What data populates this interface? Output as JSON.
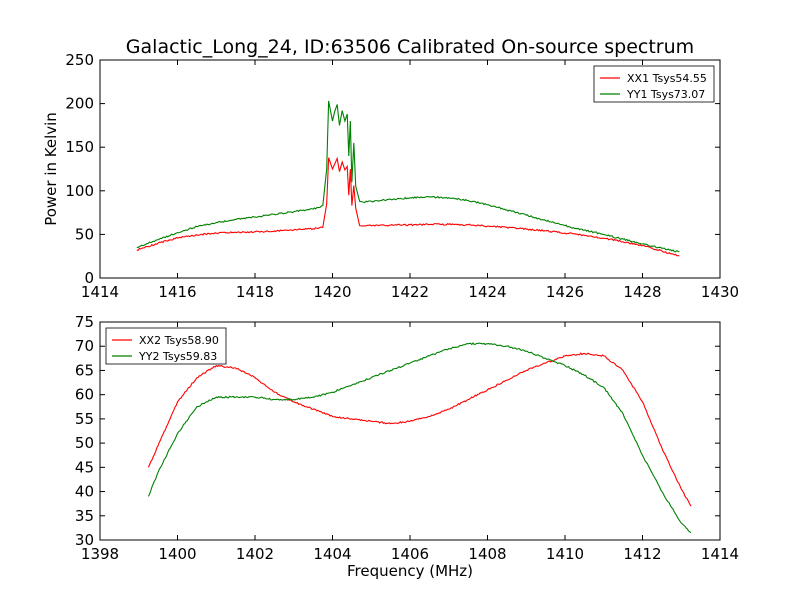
{
  "figure": {
    "title": "Galactic_Long_24, ID:63506 Calibrated On-source spectrum",
    "xlabel": "Frequency (MHz)"
  },
  "chart_data": [
    {
      "type": "line",
      "title": "Galactic_Long_24, ID:63506 Calibrated On-source spectrum",
      "xlabel": "",
      "ylabel": "Power in Kelvin",
      "xlim": [
        1414,
        1430
      ],
      "ylim": [
        0,
        250
      ],
      "xticks": [
        1414,
        1416,
        1418,
        1420,
        1422,
        1424,
        1426,
        1428,
        1430
      ],
      "yticks": [
        0,
        50,
        100,
        150,
        200,
        250
      ],
      "grid": false,
      "legend": "top-right",
      "series": [
        {
          "name": "XX1 Tsys54.55",
          "color": "#ff0000",
          "x": [
            1414.95,
            1415.5,
            1416,
            1416.5,
            1417,
            1417.5,
            1418,
            1418.5,
            1419,
            1419.5,
            1419.75,
            1419.85,
            1419.9,
            1420.0,
            1420.05,
            1420.12,
            1420.18,
            1420.25,
            1420.32,
            1420.38,
            1420.42,
            1420.46,
            1420.5,
            1420.55,
            1420.6,
            1420.7,
            1420.8,
            1421,
            1421.5,
            1422,
            1422.5,
            1423,
            1423.5,
            1424,
            1424.5,
            1425,
            1425.5,
            1426,
            1426.5,
            1427,
            1427.5,
            1428,
            1428.5,
            1428.95
          ],
          "y": [
            32,
            40,
            46,
            49.5,
            51.5,
            52.5,
            53,
            54,
            55,
            56.5,
            58,
            85,
            138,
            125,
            130,
            137,
            122,
            133,
            124,
            128,
            95,
            125,
            83,
            106,
            80,
            60,
            59.5,
            60,
            60.5,
            61,
            61.5,
            61.5,
            61,
            59.5,
            58,
            56,
            54,
            51.5,
            49,
            45.5,
            41.5,
            37,
            31,
            25
          ]
        },
        {
          "name": "YY1 Tsys73.07",
          "color": "#008000",
          "x": [
            1414.95,
            1415.5,
            1416,
            1416.5,
            1417,
            1417.5,
            1418,
            1418.5,
            1419,
            1419.5,
            1419.75,
            1419.85,
            1419.9,
            1420.0,
            1420.05,
            1420.12,
            1420.18,
            1420.25,
            1420.32,
            1420.38,
            1420.42,
            1420.46,
            1420.5,
            1420.55,
            1420.6,
            1420.7,
            1420.8,
            1421,
            1421.5,
            1422,
            1422.5,
            1423,
            1423.5,
            1424,
            1424.5,
            1425,
            1425.5,
            1426,
            1426.5,
            1427,
            1427.5,
            1428,
            1428.5,
            1428.95
          ],
          "y": [
            35,
            44,
            52,
            59,
            63.5,
            67,
            70,
            73,
            76,
            79,
            83,
            125,
            203,
            180,
            190,
            199,
            175,
            192,
            180,
            188,
            140,
            180,
            110,
            155,
            105,
            88,
            87,
            88,
            90,
            92,
            93,
            92,
            89,
            84,
            78,
            72,
            66,
            60,
            55,
            50,
            44.5,
            39,
            34,
            30
          ]
        }
      ]
    },
    {
      "type": "line",
      "title": "",
      "xlabel": "Frequency (MHz)",
      "ylabel": "",
      "xlim": [
        1398,
        1414
      ],
      "ylim": [
        30,
        75
      ],
      "xticks": [
        1398,
        1400,
        1402,
        1404,
        1406,
        1408,
        1410,
        1412,
        1414
      ],
      "yticks": [
        30,
        35,
        40,
        45,
        50,
        55,
        60,
        65,
        70,
        75
      ],
      "grid": false,
      "legend": "top-left",
      "series": [
        {
          "name": "XX2 Tsys58.90",
          "color": "#ff0000",
          "x": [
            1399.25,
            1399.5,
            1400,
            1400.5,
            1401,
            1401.5,
            1402,
            1402.5,
            1403,
            1403.5,
            1404,
            1404.5,
            1405,
            1405.5,
            1406,
            1406.5,
            1407,
            1407.5,
            1408,
            1408.5,
            1409,
            1409.5,
            1410,
            1410.5,
            1411,
            1411.5,
            1412,
            1412.5,
            1413,
            1413.25
          ],
          "y": [
            45,
            49.5,
            58.5,
            63.5,
            66,
            65.5,
            63.5,
            60.5,
            58.5,
            57,
            55.5,
            55,
            54.5,
            54,
            54.5,
            55.5,
            57,
            59,
            61,
            63,
            65,
            66.5,
            68,
            68.5,
            68,
            65,
            58.5,
            49,
            40.5,
            37
          ]
        },
        {
          "name": "YY2 Tsys59.83",
          "color": "#008000",
          "x": [
            1399.25,
            1399.5,
            1400,
            1400.5,
            1401,
            1401.5,
            1402,
            1402.5,
            1403,
            1403.5,
            1404,
            1404.5,
            1405,
            1405.5,
            1406,
            1406.5,
            1407,
            1407.5,
            1408,
            1408.5,
            1409,
            1409.5,
            1410,
            1410.5,
            1411,
            1411.5,
            1412,
            1412.5,
            1413,
            1413.25
          ],
          "y": [
            39,
            44,
            52,
            57.5,
            59.5,
            59.5,
            59.5,
            59,
            59,
            59.5,
            60.5,
            62,
            63.5,
            65,
            66.5,
            68,
            69.5,
            70.5,
            70.5,
            70,
            69,
            67.5,
            66,
            64,
            61.5,
            56,
            47.5,
            40,
            33.5,
            31.5
          ]
        }
      ]
    }
  ]
}
